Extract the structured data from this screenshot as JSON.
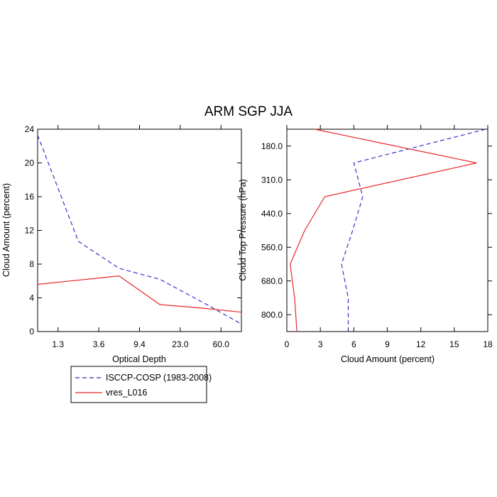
{
  "title": "ARM SGP JJA",
  "chart_data": [
    {
      "type": "line",
      "xlabel": "Optical Depth",
      "ylabel": "Cloud Amount (percent)",
      "x_tick_labels": [
        "1.3",
        "3.6",
        "9.4",
        "23.0",
        "60.0"
      ],
      "y_ticks": [
        "0",
        "4",
        "8",
        "12",
        "16",
        "20",
        "24"
      ],
      "ylim": [
        0,
        24
      ],
      "series": [
        {
          "name": "ISCCP-COSP (1983-2008)",
          "color": "#3333cc",
          "dash": "dashed",
          "x": [
            0,
            1,
            2,
            3,
            4,
            5
          ],
          "values": [
            23.3,
            10.7,
            7.5,
            6.2,
            3.6,
            0.9
          ]
        },
        {
          "name": "vres_L016",
          "color": "#e8262a",
          "dash": "solid",
          "x": [
            0,
            1,
            2,
            3,
            4,
            5
          ],
          "values": [
            5.6,
            6.1,
            6.6,
            3.2,
            2.8,
            2.3
          ]
        }
      ]
    },
    {
      "type": "line",
      "xlabel": "Cloud Amount (percent)",
      "ylabel": "Cloud Top Pressure (hPa)",
      "x_ticks": [
        "0",
        "3",
        "6",
        "9",
        "12",
        "15",
        "18"
      ],
      "xlim": [
        0,
        18
      ],
      "y_tick_labels": [
        "180.0",
        "310.0",
        "440.0",
        "560.0",
        "680.0",
        "800.0"
      ],
      "y_levels": [
        0,
        1,
        2,
        3,
        4,
        5,
        6
      ],
      "series": [
        {
          "name": "ISCCP-COSP (1983-2008)",
          "color": "#3333cc",
          "dash": "dashed",
          "values": [
            17.8,
            6.0,
            6.8,
            5.9,
            4.9,
            5.5,
            5.5
          ]
        },
        {
          "name": "vres_L016",
          "color": "#e8262a",
          "dash": "solid",
          "values": [
            2.5,
            17.0,
            3.4,
            1.6,
            0.3,
            0.7,
            0.9
          ]
        }
      ]
    }
  ],
  "legend": [
    {
      "label": "ISCCP-COSP (1983-2008)",
      "color": "#3333cc",
      "dash": "dashed"
    },
    {
      "label": "vres_L016",
      "color": "#e8262a",
      "dash": "solid"
    }
  ]
}
